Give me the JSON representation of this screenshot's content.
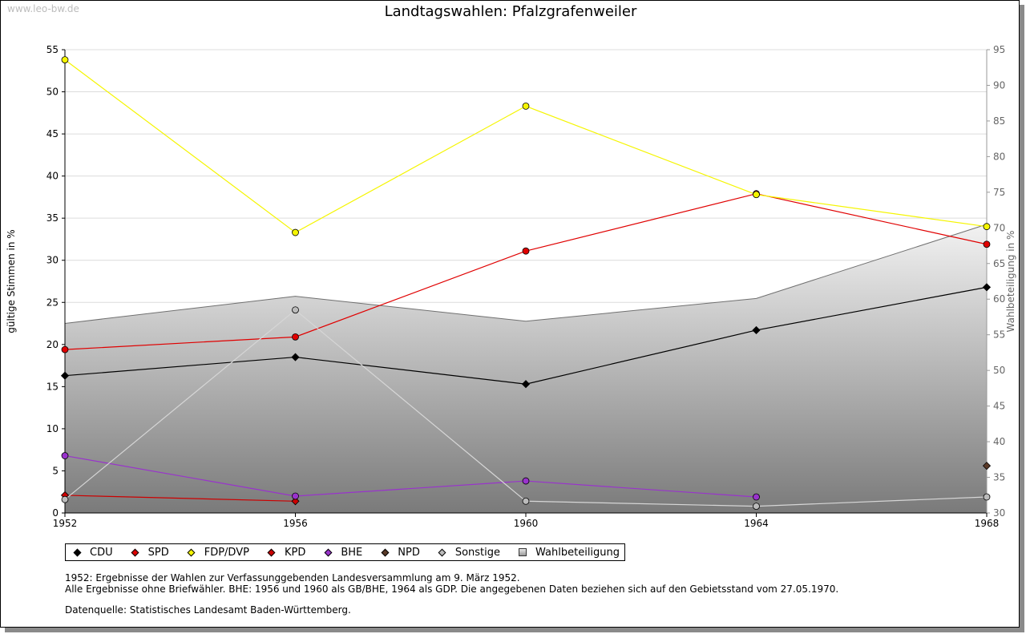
{
  "watermark": "www.leo-bw.de",
  "chart_data": {
    "type": "line",
    "title": "Landtagswahlen: Pfalzgrafenweiler",
    "ylabel": "gültige Stimmen in %",
    "y2label": "Wahlbeteiligung in %",
    "xlabel": "",
    "x": [
      1952,
      1956,
      1960,
      1964,
      1968
    ],
    "xticks": [
      "1952",
      "1956",
      "1960",
      "1964",
      "1968"
    ],
    "ylim": [
      0,
      55
    ],
    "yticks": [
      0,
      5,
      10,
      15,
      20,
      25,
      30,
      35,
      40,
      45,
      50,
      55
    ],
    "y2lim": [
      30,
      95
    ],
    "y2ticks": [
      30,
      35,
      40,
      45,
      50,
      55,
      60,
      65,
      70,
      75,
      80,
      85,
      90,
      95
    ],
    "grid": true,
    "legend_position": "bottom",
    "turnout": {
      "name": "Wahlbeteiligung",
      "axis": "right",
      "type": "area",
      "values": [
        56.6,
        60.4,
        56.9,
        60.1,
        70.5
      ]
    },
    "series": [
      {
        "name": "CDU",
        "color": "#000000",
        "line": "#000000",
        "marker": "diamond",
        "values": [
          16.3,
          18.5,
          15.3,
          21.7,
          26.8
        ]
      },
      {
        "name": "SPD",
        "color": "#e00000",
        "line": "#e00000",
        "marker": "circle",
        "values": [
          19.4,
          20.9,
          31.1,
          37.9,
          31.9
        ]
      },
      {
        "name": "FDP/DVP",
        "color": "#f5f500",
        "line": "#f5f500",
        "marker": "circle",
        "values": [
          53.8,
          33.3,
          48.3,
          37.8,
          34.0
        ]
      },
      {
        "name": "KPD",
        "color": "#cc0000",
        "line": "#cc0000",
        "marker": "diamond",
        "values": [
          2.1,
          1.4,
          null,
          null,
          null
        ]
      },
      {
        "name": "BHE",
        "color": "#9933cc",
        "line": "#9933cc",
        "marker": "circle",
        "values": [
          6.8,
          2.0,
          3.8,
          1.9,
          null
        ]
      },
      {
        "name": "NPD",
        "color": "#5a3a28",
        "line": "#5a3a28",
        "marker": "diamond",
        "values": [
          null,
          null,
          null,
          null,
          5.6
        ]
      },
      {
        "name": "Sonstige",
        "color": "#bbbbbb",
        "line": "#d6d6d6",
        "marker": "circle",
        "values": [
          1.6,
          24.1,
          1.4,
          0.8,
          1.9
        ]
      }
    ]
  },
  "legend": [
    {
      "label": "CDU",
      "color": "#000000",
      "shape": "diamond"
    },
    {
      "label": "SPD",
      "color": "#e00000",
      "shape": "diamond"
    },
    {
      "label": "FDP/DVP",
      "color": "#f5f500",
      "shape": "diamond"
    },
    {
      "label": "KPD",
      "color": "#cc0000",
      "shape": "diamond"
    },
    {
      "label": "BHE",
      "color": "#9933cc",
      "shape": "diamond"
    },
    {
      "label": "NPD",
      "color": "#5a3a28",
      "shape": "diamond"
    },
    {
      "label": "Sonstige",
      "color": "#bbbbbb",
      "shape": "diamond"
    },
    {
      "label": "Wahlbeteiligung",
      "color": "#cccccc",
      "shape": "square"
    }
  ],
  "notes": {
    "line1": "1952: Ergebnisse der Wahlen zur Verfassunggebenden Landesversammlung am 9. März 1952.",
    "line2": "Alle Ergebnisse ohne Briefwähler. BHE: 1956 und 1960 als GB/BHE, 1964 als GDP. Die angegebenen Daten beziehen sich auf den Gebietsstand vom 27.05.1970.",
    "source": "Datenquelle: Statistisches Landesamt Baden-Württemberg."
  }
}
